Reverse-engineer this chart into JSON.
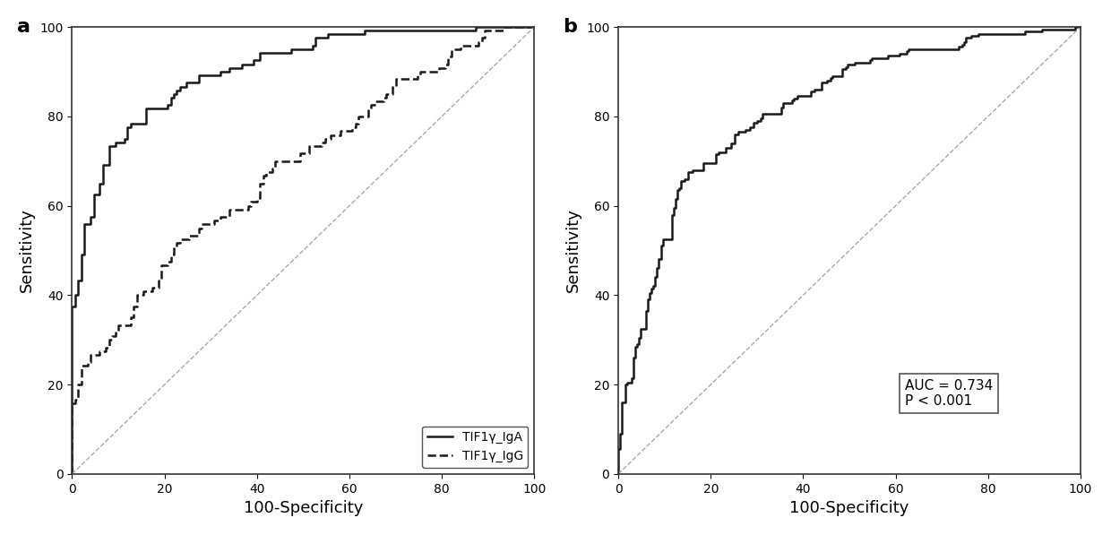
{
  "panel_a": {
    "label": "a",
    "xlabel": "100-Specificity",
    "ylabel": "Sensitivity",
    "xlim": [
      0,
      100
    ],
    "ylim": [
      0,
      100
    ],
    "xticks": [
      0,
      20,
      40,
      60,
      80,
      100
    ],
    "yticks": [
      0,
      20,
      40,
      60,
      80,
      100
    ],
    "legend_entries": [
      "TIF1γ_IgA",
      "TIF1γ_IgG"
    ],
    "line_color": "#1a1a1a",
    "diag_color": "#aaaaaa"
  },
  "panel_b": {
    "label": "b",
    "xlabel": "100-Specificity",
    "ylabel": "Sensitivity",
    "xlim": [
      0,
      100
    ],
    "ylim": [
      0,
      100
    ],
    "xticks": [
      0,
      20,
      40,
      60,
      80,
      100
    ],
    "yticks": [
      0,
      20,
      40,
      60,
      80,
      100
    ],
    "auc_text": "AUC = 0.734\nP < 0.001",
    "line_color": "#1a1a1a",
    "diag_color": "#aaaaaa"
  },
  "figure_bg": "#ffffff",
  "axes_bg": "#ffffff",
  "label_fontsize": 13,
  "tick_fontsize": 10,
  "panel_label_fontsize": 16,
  "line_width": 1.8,
  "diag_linewidth": 1.0
}
